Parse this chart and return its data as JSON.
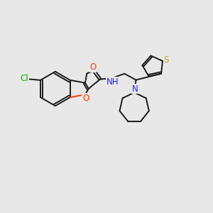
{
  "background_color": "#e8e8e8",
  "bond_color": "#1a1a1a",
  "atom_colors": {
    "Cl": "#00bb00",
    "O": "#ff3300",
    "N": "#2222ff",
    "S": "#bbaa00"
  },
  "figsize": [
    3.0,
    3.0
  ],
  "dpi": 100,
  "lw": 1.4
}
